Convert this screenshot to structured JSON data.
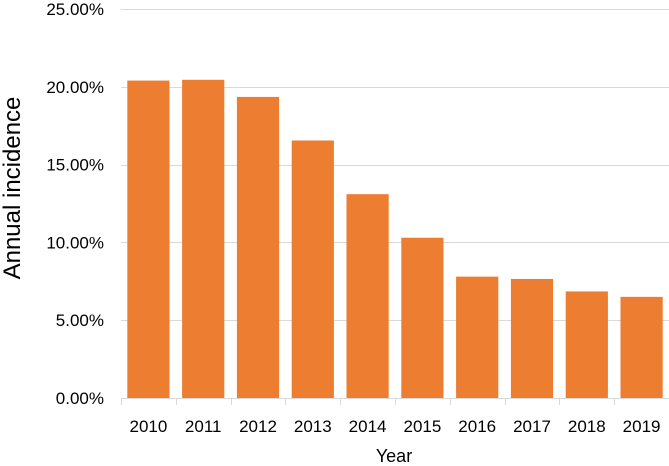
{
  "chart_data": {
    "type": "bar",
    "title": "",
    "xlabel": "Year",
    "ylabel": "Annual incidence",
    "categories": [
      "2010",
      "2011",
      "2012",
      "2013",
      "2014",
      "2015",
      "2016",
      "2017",
      "2018",
      "2019"
    ],
    "values": [
      0.204,
      0.2045,
      0.1935,
      0.1655,
      0.131,
      0.103,
      0.078,
      0.0765,
      0.0685,
      0.065
    ],
    "ylim": [
      0,
      0.25
    ],
    "yticks": [
      0,
      0.05,
      0.1,
      0.15,
      0.2,
      0.25
    ],
    "ytick_labels": [
      "0.00%",
      "5.00%",
      "10.00%",
      "15.00%",
      "20.00%",
      "25.00%"
    ],
    "grid": "horizontal",
    "legend": "none",
    "bar_color": "#ED7D31",
    "grid_color": "#D9D9D9"
  }
}
